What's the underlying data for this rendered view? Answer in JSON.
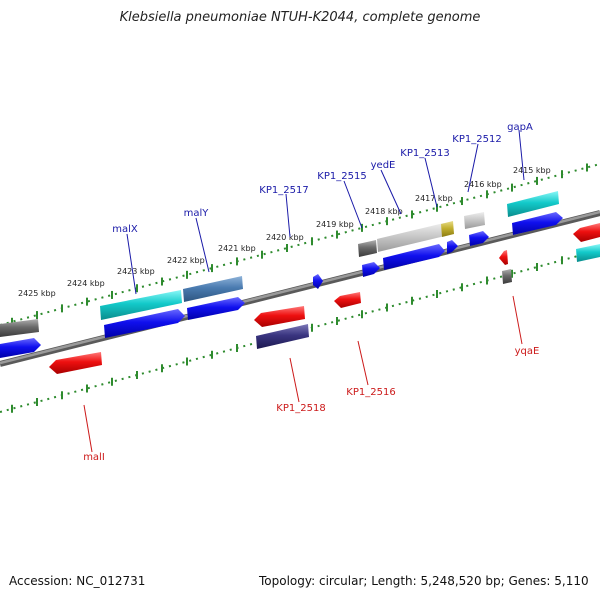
{
  "header": {
    "title": "Klebsiella pneumoniae NTUH-K2044, complete genome"
  },
  "footer": {
    "accession": "Accession: NC_012731",
    "stats": "Topology: circular; Length: 5,248,520 bp; Genes: 5,110"
  },
  "ticks": [
    "2425 kbp",
    "2424 kbp",
    "2423 kbp",
    "2422 kbp",
    "2421 kbp",
    "2420 kbp",
    "2419 kbp",
    "2418 kbp",
    "2417 kbp",
    "2416 kbp",
    "2415 kbp"
  ],
  "genes_top": [
    "malX",
    "malY",
    "KP1_2517",
    "KP1_2515",
    "yedE",
    "KP1_2513",
    "KP1_2512",
    "gapA"
  ],
  "genes_bottom": [
    "malI",
    "KP1_2518",
    "KP1_2516",
    "yqaE"
  ],
  "colors": {
    "forward_label": "#1a1aa8",
    "reverse_label": "#cc1a1a",
    "tick_mark": "#2e8b2e",
    "backbone": "#7a7a7a"
  }
}
